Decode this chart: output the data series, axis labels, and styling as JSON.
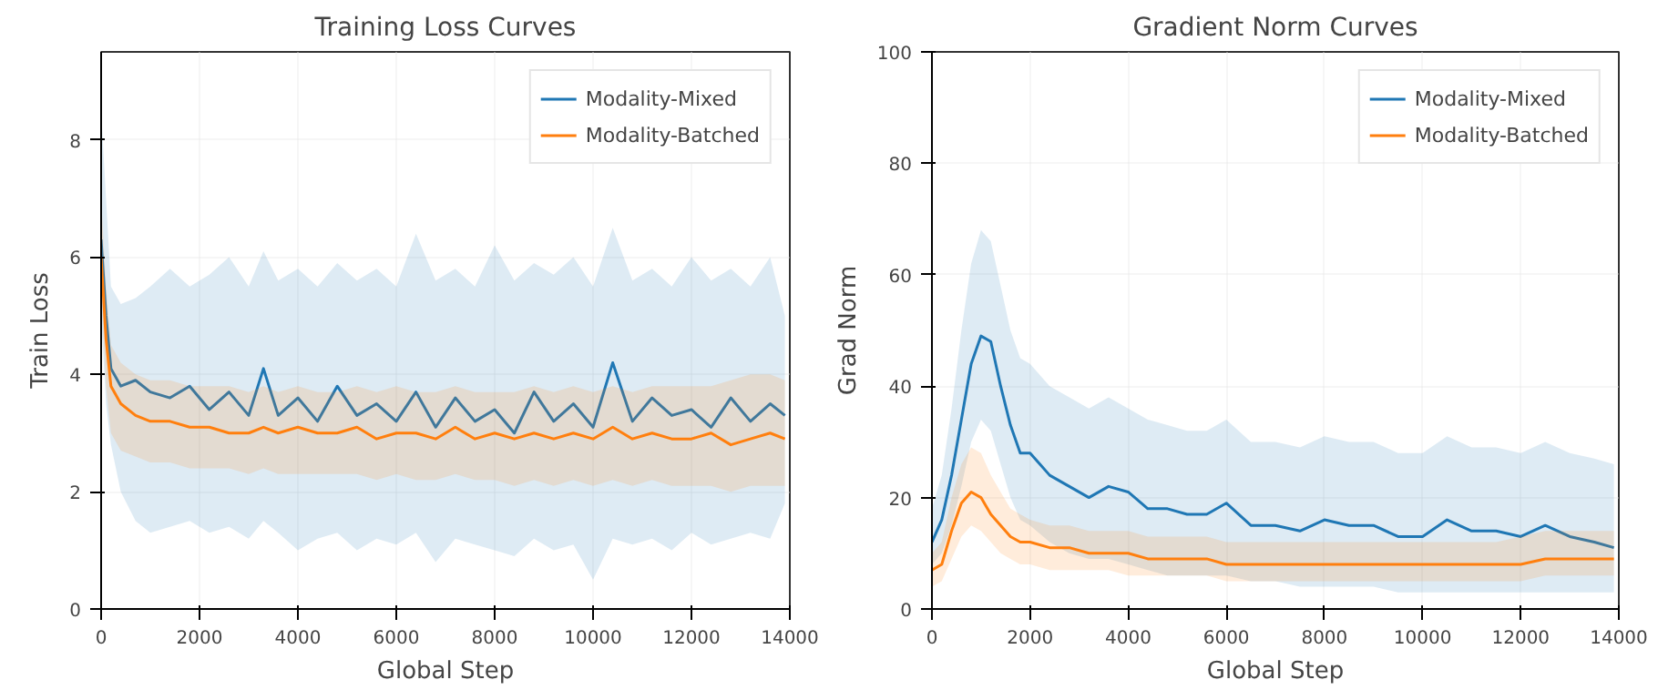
{
  "chart_data": [
    {
      "type": "line",
      "title": "Training Loss Curves",
      "xlabel": "Global Step",
      "ylabel": "Train Loss",
      "xlim": [
        0,
        14000
      ],
      "ylim": [
        0,
        9.5
      ],
      "xticks": [
        0,
        2000,
        4000,
        6000,
        8000,
        10000,
        12000,
        14000
      ],
      "yticks": [
        0,
        2,
        4,
        6,
        8
      ],
      "grid": true,
      "legend": "top right",
      "x": [
        0,
        100,
        200,
        400,
        700,
        1000,
        1400,
        1800,
        2200,
        2600,
        3000,
        3300,
        3600,
        4000,
        4400,
        4800,
        5200,
        5600,
        6000,
        6400,
        6800,
        7200,
        7600,
        8000,
        8400,
        8800,
        9200,
        9600,
        10000,
        10400,
        10800,
        11200,
        11600,
        12000,
        12400,
        12800,
        13200,
        13600,
        13900
      ],
      "series": [
        {
          "name": "Modality-Mixed",
          "color": "#1f77b4",
          "values": [
            6.3,
            5.0,
            4.1,
            3.8,
            3.9,
            3.7,
            3.6,
            3.8,
            3.4,
            3.7,
            3.3,
            4.1,
            3.3,
            3.6,
            3.2,
            3.8,
            3.3,
            3.5,
            3.2,
            3.7,
            3.1,
            3.6,
            3.2,
            3.4,
            3.0,
            3.7,
            3.2,
            3.5,
            3.1,
            4.2,
            3.2,
            3.6,
            3.3,
            3.4,
            3.1,
            3.6,
            3.2,
            3.5,
            3.3
          ],
          "lower": [
            5.0,
            3.5,
            2.8,
            2.0,
            1.5,
            1.3,
            1.4,
            1.5,
            1.3,
            1.4,
            1.2,
            1.5,
            1.3,
            1.0,
            1.2,
            1.3,
            1.0,
            1.2,
            1.1,
            1.3,
            0.8,
            1.2,
            1.1,
            1.0,
            0.9,
            1.2,
            1.0,
            1.1,
            0.5,
            1.2,
            1.1,
            1.2,
            1.0,
            1.3,
            1.1,
            1.2,
            1.3,
            1.2,
            1.8
          ],
          "upper": [
            8.5,
            7.0,
            5.5,
            5.2,
            5.3,
            5.5,
            5.8,
            5.5,
            5.7,
            6.0,
            5.5,
            6.1,
            5.6,
            5.8,
            5.5,
            5.9,
            5.6,
            5.8,
            5.5,
            6.4,
            5.6,
            5.8,
            5.5,
            6.2,
            5.6,
            5.9,
            5.7,
            6.0,
            5.5,
            6.5,
            5.6,
            5.8,
            5.5,
            6.0,
            5.6,
            5.8,
            5.5,
            6.0,
            5.0
          ]
        },
        {
          "name": "Modality-Batched",
          "color": "#ff7f0e",
          "values": [
            6.0,
            4.6,
            3.8,
            3.5,
            3.3,
            3.2,
            3.2,
            3.1,
            3.1,
            3.0,
            3.0,
            3.1,
            3.0,
            3.1,
            3.0,
            3.0,
            3.1,
            2.9,
            3.0,
            3.0,
            2.9,
            3.1,
            2.9,
            3.0,
            2.9,
            3.0,
            2.9,
            3.0,
            2.9,
            3.1,
            2.9,
            3.0,
            2.9,
            2.9,
            3.0,
            2.8,
            2.9,
            3.0,
            2.9
          ],
          "lower": [
            5.5,
            3.8,
            3.0,
            2.7,
            2.6,
            2.5,
            2.5,
            2.4,
            2.4,
            2.4,
            2.3,
            2.4,
            2.3,
            2.3,
            2.3,
            2.3,
            2.3,
            2.2,
            2.3,
            2.2,
            2.2,
            2.3,
            2.2,
            2.2,
            2.1,
            2.2,
            2.1,
            2.2,
            2.1,
            2.2,
            2.1,
            2.2,
            2.1,
            2.1,
            2.1,
            2.0,
            2.1,
            2.1,
            2.1
          ],
          "upper": [
            7.0,
            5.5,
            4.5,
            4.2,
            4.0,
            3.9,
            3.9,
            3.8,
            3.8,
            3.8,
            3.7,
            3.8,
            3.7,
            3.8,
            3.7,
            3.7,
            3.8,
            3.7,
            3.8,
            3.7,
            3.7,
            3.8,
            3.7,
            3.7,
            3.7,
            3.8,
            3.7,
            3.8,
            3.7,
            3.8,
            3.7,
            3.8,
            3.8,
            3.8,
            3.8,
            3.9,
            4.0,
            4.0,
            3.9
          ]
        }
      ]
    },
    {
      "type": "line",
      "title": "Gradient Norm Curves",
      "xlabel": "Global Step",
      "ylabel": "Grad Norm",
      "xlim": [
        0,
        14000
      ],
      "ylim": [
        0,
        100
      ],
      "xticks": [
        0,
        2000,
        4000,
        6000,
        8000,
        10000,
        12000,
        14000
      ],
      "yticks": [
        0,
        20,
        40,
        60,
        80,
        100
      ],
      "grid": true,
      "legend": "top right",
      "x": [
        0,
        200,
        400,
        600,
        800,
        1000,
        1200,
        1400,
        1600,
        1800,
        2000,
        2400,
        2800,
        3200,
        3600,
        4000,
        4400,
        4800,
        5200,
        5600,
        6000,
        6500,
        7000,
        7500,
        8000,
        8500,
        9000,
        9500,
        10000,
        10500,
        11000,
        11500,
        12000,
        12500,
        13000,
        13500,
        13900
      ],
      "series": [
        {
          "name": "Modality-Mixed",
          "color": "#1f77b4",
          "values": [
            12,
            16,
            24,
            34,
            44,
            49,
            48,
            40,
            33,
            28,
            28,
            24,
            22,
            20,
            22,
            21,
            18,
            18,
            17,
            17,
            19,
            15,
            15,
            14,
            16,
            15,
            15,
            13,
            13,
            16,
            14,
            14,
            13,
            15,
            13,
            12,
            11
          ],
          "lower": [
            8,
            10,
            15,
            22,
            30,
            34,
            32,
            26,
            20,
            16,
            15,
            12,
            10,
            9,
            9,
            8,
            7,
            6,
            6,
            6,
            6,
            5,
            5,
            4,
            4,
            4,
            4,
            3,
            3,
            3,
            3,
            3,
            3,
            3,
            3,
            3,
            3
          ],
          "upper": [
            18,
            24,
            36,
            50,
            62,
            68,
            66,
            58,
            50,
            45,
            44,
            40,
            38,
            36,
            38,
            36,
            34,
            33,
            32,
            32,
            34,
            30,
            30,
            29,
            31,
            30,
            30,
            28,
            28,
            31,
            29,
            29,
            28,
            30,
            28,
            27,
            26
          ]
        },
        {
          "name": "Modality-Batched",
          "color": "#ff7f0e",
          "values": [
            7,
            8,
            14,
            19,
            21,
            20,
            17,
            15,
            13,
            12,
            12,
            11,
            11,
            10,
            10,
            10,
            9,
            9,
            9,
            9,
            8,
            8,
            8,
            8,
            8,
            8,
            8,
            8,
            8,
            8,
            8,
            8,
            8,
            9,
            9,
            9,
            9
          ],
          "lower": [
            4,
            5,
            9,
            13,
            15,
            14,
            12,
            10,
            9,
            8,
            8,
            7,
            7,
            7,
            7,
            6,
            6,
            6,
            6,
            6,
            5,
            5,
            5,
            5,
            5,
            5,
            5,
            5,
            5,
            5,
            5,
            5,
            5,
            6,
            6,
            6,
            6
          ],
          "upper": [
            10,
            12,
            20,
            26,
            29,
            28,
            24,
            21,
            18,
            17,
            16,
            15,
            15,
            14,
            14,
            14,
            13,
            13,
            13,
            13,
            12,
            12,
            12,
            12,
            12,
            12,
            12,
            12,
            12,
            12,
            12,
            12,
            13,
            14,
            14,
            14,
            14
          ]
        }
      ]
    }
  ]
}
